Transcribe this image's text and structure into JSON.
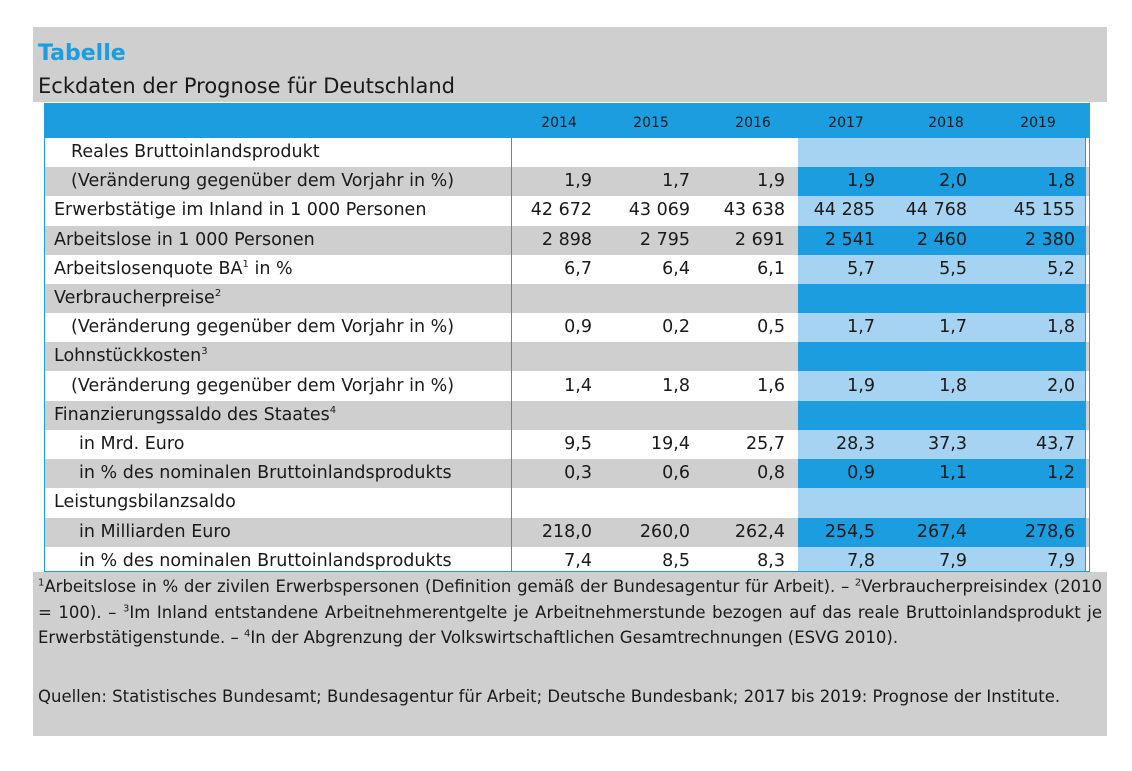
{
  "header": {
    "label": "Tabelle",
    "title": "Eckdaten der Prognose für Deutschland"
  },
  "table": {
    "years": [
      "2014",
      "2015",
      "2016",
      "2017",
      "2018",
      "2019"
    ],
    "rows": [
      {
        "label": "Reales Bruttoinlandsprodukt",
        "sup": "",
        "values": [
          "",
          "",
          "",
          "",
          "",
          ""
        ]
      },
      {
        "label": "(Veränderung gegenüber dem Vorjahr in %)",
        "sup": "",
        "values": [
          "1,9",
          "1,7",
          "1,9",
          "1,9",
          "2,0",
          "1,8"
        ]
      },
      {
        "label": "Erwerbstätige im Inland in 1 000 Personen",
        "sup": "",
        "values": [
          "42 672",
          "43 069",
          "43 638",
          "44 285",
          "44 768",
          "45 155"
        ]
      },
      {
        "label": "Arbeitslose in 1 000 Personen",
        "sup": "",
        "values": [
          "2 898",
          "2 795",
          "2 691",
          "2 541",
          "2 460",
          "2 380"
        ]
      },
      {
        "label": "Arbeitslosenquote BA",
        "sup": "1",
        "label_suffix": " in %",
        "values": [
          "6,7",
          "6,4",
          "6,1",
          "5,7",
          "5,5",
          "5,2"
        ]
      },
      {
        "label": "Verbraucherpreise",
        "sup": "2",
        "values": [
          "",
          "",
          "",
          "",
          "",
          ""
        ]
      },
      {
        "label": "(Veränderung gegenüber dem Vorjahr in %)",
        "sup": "",
        "values": [
          "0,9",
          "0,2",
          "0,5",
          "1,7",
          "1,7",
          "1,8"
        ]
      },
      {
        "label": "Lohnstückkosten",
        "sup": "3",
        "values": [
          "",
          "",
          "",
          "",
          "",
          ""
        ]
      },
      {
        "label": "(Veränderung gegenüber dem Vorjahr in %)",
        "sup": "",
        "values": [
          "1,4",
          "1,8",
          "1,6",
          "1,9",
          "1,8",
          "2,0"
        ]
      },
      {
        "label": "Finanzierungssaldo des Staates",
        "sup": "4",
        "values": [
          "",
          "",
          "",
          "",
          "",
          ""
        ]
      },
      {
        "label": "in Mrd. Euro",
        "sup": "",
        "values": [
          "9,5",
          "19,4",
          "25,7",
          "28,3",
          "37,3",
          "43,7"
        ]
      },
      {
        "label": "in % des nominalen Bruttoinlandsprodukts",
        "sup": "",
        "values": [
          "0,3",
          "0,6",
          "0,8",
          "0,9",
          "1,1",
          "1,2"
        ]
      },
      {
        "label": "Leistungsbilanzsaldo",
        "sup": "",
        "values": [
          "",
          "",
          "",
          "",
          "",
          ""
        ]
      },
      {
        "label": "in Milliarden Euro",
        "sup": "",
        "values": [
          "218,0",
          "260,0",
          "262,4",
          "254,5",
          "267,4",
          "278,6"
        ]
      },
      {
        "label": "in % des nominalen Bruttoinlandsprodukts",
        "sup": "",
        "values": [
          "7,4",
          "8,5",
          "8,3",
          "7,8",
          "7,9",
          "7,9"
        ]
      }
    ]
  },
  "footer": {
    "fn1_mark": "1",
    "fn1_text": "Arbeitslose in % der zivilen Erwerbspersonen (Definition gemäß der Bundesagentur für Arbeit). –",
    "fn2_mark": "2",
    "fn2_text": "Verbraucherpreisindex (2010 = 100). –",
    "fn3_mark": "3",
    "fn3_text": "Im Inland entstandene Arbeitnehmerentgelte je Arbeitnehmerstunde bezogen auf das reale Bruttoinlandsprodukt je Erwerbstätigenstunde. –",
    "fn4_mark": "4",
    "fn4_text": "In der Abgrenzung der Volkswirtschaftlichen Gesamtrechnungen (ESVG 2010).",
    "sources": "Quellen: Statistisches Bundesamt; Bundesagentur für Arbeit; Deutsche Bundesbank; 2017 bis 2019: Prognose der Institute."
  },
  "colors": {
    "accent_blue": "#1b9de0",
    "forecast_light": "#a6d3f2",
    "gray_band": "#cfcfcf"
  }
}
